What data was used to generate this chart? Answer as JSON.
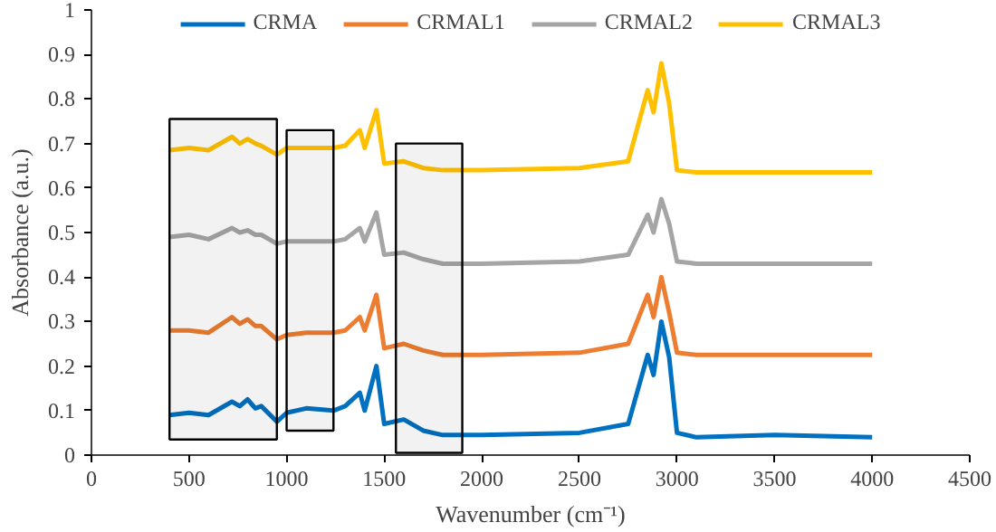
{
  "chart_data": {
    "type": "line",
    "xlabel": "Wavenumber (cm⁻¹)",
    "ylabel": "Absorbance (a.u.)",
    "x": [
      400,
      500,
      600,
      720,
      760,
      800,
      840,
      870,
      950,
      1000,
      1100,
      1240,
      1300,
      1375,
      1400,
      1460,
      1500,
      1600,
      1700,
      1800,
      2000,
      2500,
      2750,
      2850,
      2880,
      2920,
      2960,
      3000,
      3100,
      3500,
      4000
    ],
    "series": [
      {
        "name": "CRMA",
        "color": "#0070c0",
        "values": [
          0.09,
          0.095,
          0.09,
          0.12,
          0.11,
          0.125,
          0.105,
          0.11,
          0.075,
          0.095,
          0.105,
          0.1,
          0.11,
          0.14,
          0.1,
          0.2,
          0.07,
          0.08,
          0.055,
          0.045,
          0.045,
          0.05,
          0.07,
          0.225,
          0.18,
          0.3,
          0.22,
          0.05,
          0.04,
          0.045,
          0.04
        ]
      },
      {
        "name": "CRMAL1",
        "color": "#ed7d31",
        "values": [
          0.28,
          0.28,
          0.275,
          0.31,
          0.295,
          0.305,
          0.29,
          0.29,
          0.26,
          0.27,
          0.275,
          0.275,
          0.28,
          0.31,
          0.28,
          0.36,
          0.24,
          0.25,
          0.235,
          0.225,
          0.225,
          0.23,
          0.25,
          0.36,
          0.31,
          0.4,
          0.32,
          0.23,
          0.225,
          0.225,
          0.225
        ]
      },
      {
        "name": "CRMAL2",
        "color": "#a5a5a5",
        "values": [
          0.49,
          0.495,
          0.485,
          0.51,
          0.5,
          0.505,
          0.495,
          0.495,
          0.475,
          0.48,
          0.48,
          0.48,
          0.485,
          0.51,
          0.48,
          0.545,
          0.45,
          0.455,
          0.44,
          0.43,
          0.43,
          0.435,
          0.45,
          0.54,
          0.5,
          0.575,
          0.52,
          0.435,
          0.43,
          0.43,
          0.43
        ]
      },
      {
        "name": "CRMAL3",
        "color": "#ffc000",
        "values": [
          0.685,
          0.69,
          0.685,
          0.715,
          0.7,
          0.71,
          0.7,
          0.695,
          0.675,
          0.69,
          0.69,
          0.69,
          0.695,
          0.73,
          0.69,
          0.775,
          0.655,
          0.66,
          0.645,
          0.64,
          0.64,
          0.645,
          0.66,
          0.82,
          0.77,
          0.88,
          0.79,
          0.64,
          0.635,
          0.635,
          0.635
        ]
      }
    ],
    "xlim": [
      0,
      4500
    ],
    "xticks": [
      0,
      500,
      1000,
      1500,
      2000,
      2500,
      3000,
      3500,
      4000,
      4500
    ],
    "ylim": [
      0,
      1
    ],
    "yticks": [
      0,
      0.1,
      0.2,
      0.3,
      0.4,
      0.5,
      0.6,
      0.7,
      0.8,
      0.9,
      1
    ],
    "bands": [
      {
        "axis": "x",
        "from": 400,
        "to": 950,
        "color": "#000000"
      },
      {
        "axis": "x",
        "from": 1000,
        "to": 1240,
        "color": "#000000"
      },
      {
        "axis": "x",
        "from": 1560,
        "to": 1900,
        "color": "#000000"
      }
    ],
    "legend": "top",
    "grid": false,
    "marker": "none",
    "line_style": "solid"
  }
}
